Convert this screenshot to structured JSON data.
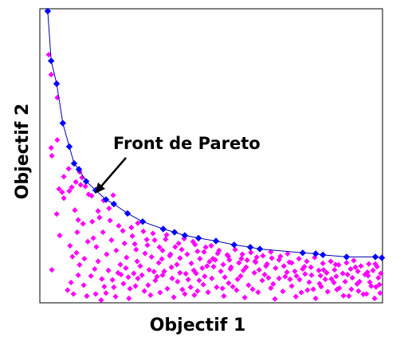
{
  "chart_data": {
    "type": "scatter",
    "title": "",
    "xlabel": "Objectif 1",
    "ylabel": "Objectif 2",
    "xlim": [
      0,
      100
    ],
    "ylim": [
      0,
      100
    ],
    "grid": false,
    "tick_labels": "none",
    "annotation": {
      "text": "Front de Pareto",
      "target": [
        16.3,
        38.3
      ]
    },
    "colors": {
      "front": "#0000ff",
      "dominated": "#ff00ff",
      "axes": "#000000",
      "background": "#ffffff"
    },
    "series": [
      {
        "values": [
          [
            2.3,
            99.2
          ],
          [
            3.3,
            82.3
          ],
          [
            4.9,
            74.5
          ],
          [
            6.7,
            61.1
          ],
          [
            8.6,
            53.1
          ],
          [
            10.0,
            47.4
          ],
          [
            11.4,
            45.4
          ],
          [
            13.5,
            41.3
          ],
          [
            16.3,
            38.3
          ],
          [
            19.3,
            35.1
          ],
          [
            21.6,
            33.6
          ],
          [
            25.6,
            30.4
          ],
          [
            30.0,
            27.6
          ],
          [
            36.0,
            25.1
          ],
          [
            39.3,
            24.0
          ],
          [
            42.3,
            22.9
          ],
          [
            46.3,
            22.0
          ],
          [
            51.4,
            21.0
          ],
          [
            56.7,
            19.7
          ],
          [
            61.4,
            18.9
          ],
          [
            64.2,
            18.3
          ],
          [
            76.7,
            17.0
          ],
          [
            80.5,
            16.7
          ],
          [
            82.6,
            16.3
          ],
          [
            89.5,
            15.6
          ],
          [
            97.9,
            15.6
          ],
          [
            99.8,
            15.3
          ]
        ]
      },
      {
        "values": [
          [
            2.6,
            84.4
          ],
          [
            3.3,
            77.6
          ],
          [
            5.1,
            69.8
          ],
          [
            5.1,
            55.4
          ],
          [
            3.5,
            50.0
          ],
          [
            3.3,
            52.7
          ],
          [
            5.6,
            38.7
          ],
          [
            4.9,
            30.2
          ],
          [
            5.8,
            22.9
          ],
          [
            3.5,
            11.2
          ],
          [
            6.5,
            37.6
          ],
          [
            7.0,
            42.9
          ],
          [
            8.4,
            45.6
          ],
          [
            7.0,
            35.6
          ],
          [
            8.6,
            38.0
          ],
          [
            9.3,
            39.3
          ],
          [
            10.5,
            41.1
          ],
          [
            11.6,
            44.5
          ],
          [
            12.3,
            42.6
          ],
          [
            11.9,
            40.1
          ],
          [
            13.3,
            39.6
          ],
          [
            14.2,
            36.9
          ],
          [
            15.1,
            36.4
          ],
          [
            17.0,
            31.2
          ],
          [
            20.2,
            32.1
          ],
          [
            21.4,
            36.6
          ],
          [
            18.6,
            34.8
          ],
          [
            10.2,
            31.5
          ],
          [
            11.2,
            28.2
          ],
          [
            10.9,
            24.0
          ],
          [
            12.6,
            26.9
          ],
          [
            8.8,
            19.4
          ],
          [
            9.5,
            15.7
          ],
          [
            10.7,
            17.0
          ],
          [
            11.6,
            12.9
          ],
          [
            11.2,
            9.4
          ],
          [
            9.1,
            6.9
          ],
          [
            8.1,
            4.3
          ],
          [
            9.8,
            3.0
          ],
          [
            12.8,
            6.0
          ],
          [
            13.7,
            2.3
          ],
          [
            16.3,
            3.0
          ],
          [
            17.9,
            0.9
          ],
          [
            19.3,
            3.3
          ],
          [
            21.6,
            5.3
          ],
          [
            22.1,
            2.1
          ],
          [
            24.4,
            6.5
          ],
          [
            25.8,
            8.7
          ],
          [
            26.3,
            4.8
          ],
          [
            27.9,
            5.7
          ],
          [
            28.6,
            8.3
          ],
          [
            30.5,
            4.0
          ],
          [
            31.6,
            6.0
          ],
          [
            32.3,
            2.6
          ],
          [
            33.7,
            7.6
          ],
          [
            35.1,
            3.5
          ],
          [
            35.8,
            9.4
          ],
          [
            37.2,
            4.8
          ],
          [
            39.1,
            1.9
          ],
          [
            40.2,
            7.2
          ],
          [
            41.6,
            4.5
          ],
          [
            42.6,
            9.9
          ],
          [
            44.0,
            5.3
          ],
          [
            45.1,
            2.6
          ],
          [
            46.5,
            7.6
          ],
          [
            47.4,
            11.8
          ],
          [
            49.1,
            3.6
          ],
          [
            50.2,
            8.3
          ],
          [
            51.6,
            5.3
          ],
          [
            52.8,
            10.7
          ],
          [
            53.7,
            2.3
          ],
          [
            55.1,
            6.7
          ],
          [
            55.8,
            12.1
          ],
          [
            57.4,
            4.3
          ],
          [
            58.6,
            9.1
          ],
          [
            59.8,
            1.8
          ],
          [
            60.9,
            6.0
          ],
          [
            62.6,
            10.2
          ],
          [
            63.7,
            3.6
          ],
          [
            64.9,
            7.6
          ],
          [
            66.0,
            12.5
          ],
          [
            67.4,
            5.0
          ],
          [
            68.6,
            1.3
          ],
          [
            69.8,
            8.3
          ],
          [
            70.9,
            3.9
          ],
          [
            72.1,
            10.4
          ],
          [
            73.5,
            5.7
          ],
          [
            74.7,
            2.1
          ],
          [
            75.8,
            7.9
          ],
          [
            77.2,
            12.3
          ],
          [
            78.1,
            4.3
          ],
          [
            79.3,
            9.4
          ],
          [
            80.5,
            1.5
          ],
          [
            81.6,
            6.5
          ],
          [
            82.8,
            11.2
          ],
          [
            84.0,
            3.8
          ],
          [
            85.1,
            8.1
          ],
          [
            86.3,
            13.0
          ],
          [
            87.4,
            5.0
          ],
          [
            88.6,
            2.4
          ],
          [
            89.8,
            9.6
          ],
          [
            90.9,
            4.6
          ],
          [
            92.1,
            12.1
          ],
          [
            93.3,
            7.2
          ],
          [
            94.4,
            2.9
          ],
          [
            95.6,
            10.4
          ],
          [
            96.7,
            5.7
          ],
          [
            97.9,
            13.2
          ],
          [
            98.8,
            8.5
          ],
          [
            99.3,
            3.3
          ],
          [
            14.0,
            20.8
          ],
          [
            16.5,
            19.0
          ],
          [
            18.4,
            24.0
          ],
          [
            17.0,
            14.1
          ],
          [
            19.5,
            16.5
          ],
          [
            20.9,
            21.3
          ],
          [
            22.3,
            17.8
          ],
          [
            23.5,
            13.0
          ],
          [
            24.7,
            20.2
          ],
          [
            25.3,
            15.4
          ],
          [
            27.0,
            22.7
          ],
          [
            28.1,
            18.1
          ],
          [
            29.3,
            12.5
          ],
          [
            30.2,
            24.3
          ],
          [
            31.4,
            19.6
          ],
          [
            32.6,
            15.6
          ],
          [
            33.5,
            21.3
          ],
          [
            34.7,
            13.6
          ],
          [
            35.8,
            17.8
          ],
          [
            37.0,
            23.1
          ],
          [
            38.4,
            12.1
          ],
          [
            39.5,
            19.0
          ],
          [
            40.9,
            15.2
          ],
          [
            42.1,
            21.8
          ],
          [
            43.0,
            16.5
          ],
          [
            44.2,
            13.4
          ],
          [
            45.3,
            19.8
          ],
          [
            46.7,
            15.0
          ],
          [
            47.9,
            17.3
          ],
          [
            48.8,
            12.5
          ],
          [
            50.0,
            19.4
          ],
          [
            51.2,
            14.6
          ],
          [
            52.3,
            17.8
          ],
          [
            53.5,
            13.0
          ],
          [
            54.7,
            16.3
          ],
          [
            55.6,
            11.5
          ],
          [
            57.0,
            18.1
          ],
          [
            58.1,
            13.6
          ],
          [
            59.1,
            16.5
          ],
          [
            60.2,
            12.1
          ],
          [
            61.6,
            17.1
          ],
          [
            62.8,
            14.1
          ],
          [
            64.0,
            11.2
          ],
          [
            65.1,
            16.0
          ],
          [
            66.3,
            13.2
          ],
          [
            67.4,
            17.3
          ],
          [
            68.8,
            11.8
          ],
          [
            69.8,
            14.6
          ],
          [
            71.2,
            12.5
          ],
          [
            72.3,
            16.7
          ],
          [
            73.5,
            13.6
          ],
          [
            74.4,
            10.7
          ],
          [
            75.6,
            15.0
          ],
          [
            76.7,
            11.5
          ],
          [
            77.9,
            14.1
          ],
          [
            79.1,
            12.1
          ],
          [
            80.2,
            15.4
          ],
          [
            81.4,
            11.0
          ],
          [
            82.6,
            13.4
          ],
          [
            83.7,
            10.2
          ],
          [
            84.9,
            14.1
          ],
          [
            86.0,
            11.2
          ],
          [
            87.2,
            12.9
          ],
          [
            88.4,
            10.0
          ],
          [
            89.5,
            13.6
          ],
          [
            90.7,
            11.5
          ],
          [
            91.6,
            14.4
          ],
          [
            92.8,
            10.7
          ],
          [
            93.7,
            12.5
          ],
          [
            94.9,
            9.6
          ],
          [
            96.0,
            13.2
          ],
          [
            97.2,
            11.0
          ],
          [
            98.4,
            12.3
          ],
          [
            99.5,
            10.0
          ],
          [
            15.3,
            27.6
          ],
          [
            17.4,
            29.0
          ],
          [
            23.0,
            26.2
          ],
          [
            26.7,
            25.6
          ],
          [
            28.6,
            27.1
          ],
          [
            33.0,
            23.6
          ],
          [
            36.7,
            21.6
          ],
          [
            40.5,
            20.2
          ],
          [
            44.7,
            20.8
          ],
          [
            48.4,
            18.9
          ],
          [
            14.9,
            9.1
          ],
          [
            18.1,
            8.1
          ],
          [
            20.0,
            11.0
          ],
          [
            22.8,
            10.2
          ],
          [
            25.1,
            11.8
          ],
          [
            27.4,
            10.0
          ],
          [
            29.8,
            9.4
          ],
          [
            31.9,
            11.2
          ],
          [
            34.2,
            8.9
          ],
          [
            36.3,
            10.7
          ],
          [
            38.6,
            8.3
          ],
          [
            40.9,
            10.2
          ],
          [
            43.3,
            7.9
          ],
          [
            45.6,
            10.0
          ],
          [
            47.7,
            6.2
          ],
          [
            50.7,
            12.3
          ],
          [
            54.0,
            8.7
          ],
          [
            56.3,
            5.5
          ],
          [
            59.4,
            11.0
          ],
          [
            62.1,
            4.6
          ],
          [
            65.6,
            9.6
          ],
          [
            68.1,
            6.4
          ],
          [
            71.6,
            8.9
          ],
          [
            74.9,
            9.1
          ],
          [
            78.6,
            7.0
          ],
          [
            82.1,
            5.5
          ],
          [
            85.8,
            6.9
          ],
          [
            89.1,
            7.2
          ],
          [
            92.6,
            6.4
          ],
          [
            96.3,
            7.0
          ],
          [
            99.1,
            6.2
          ],
          [
            13.0,
            15.0
          ],
          [
            16.0,
            11.5
          ],
          [
            18.8,
            5.5
          ],
          [
            21.2,
            7.8
          ],
          [
            23.7,
            9.6
          ],
          [
            26.0,
            1.5
          ],
          [
            28.4,
            14.1
          ],
          [
            30.7,
            16.8
          ],
          [
            33.3,
            10.6
          ],
          [
            35.6,
            14.9
          ],
          [
            37.9,
            16.0
          ],
          [
            40.0,
            13.0
          ],
          [
            42.3,
            3.0
          ],
          [
            44.9,
            11.0
          ],
          [
            46.0,
            4.0
          ],
          [
            48.1,
            9.0
          ],
          [
            49.5,
            14.0
          ],
          [
            51.9,
            16.8
          ],
          [
            53.3,
            4.9
          ],
          [
            55.3,
            14.6
          ],
          [
            57.7,
            8.0
          ],
          [
            60.5,
            14.5
          ],
          [
            63.3,
            15.5
          ],
          [
            66.7,
            8.5
          ],
          [
            70.2,
            15.8
          ],
          [
            73.0,
            8.0
          ],
          [
            76.3,
            3.5
          ],
          [
            79.8,
            4.6
          ],
          [
            83.3,
            8.0
          ],
          [
            86.7,
            4.5
          ],
          [
            90.2,
            2.3
          ],
          [
            93.0,
            4.0
          ],
          [
            95.3,
            3.0
          ],
          [
            97.7,
            1.5
          ],
          [
            15.6,
            22.0
          ],
          [
            20.5,
            28.0
          ],
          [
            24.2,
            24.5
          ],
          [
            27.7,
            20.0
          ],
          [
            31.2,
            21.5
          ],
          [
            34.9,
            18.9
          ],
          [
            38.1,
            16.5
          ],
          [
            41.4,
            18.1
          ],
          [
            46.0,
            17.5
          ],
          [
            50.5,
            15.0
          ],
          [
            55.0,
            15.8
          ],
          [
            58.8,
            15.0
          ],
          [
            63.0,
            13.8
          ],
          [
            67.7,
            15.2
          ],
          [
            72.8,
            13.8
          ],
          [
            77.4,
            9.8
          ],
          [
            81.9,
            9.2
          ],
          [
            86.5,
            9.0
          ],
          [
            91.2,
            8.5
          ],
          [
            95.8,
            9.2
          ],
          [
            98.1,
            5.4
          ]
        ]
      }
    ]
  }
}
